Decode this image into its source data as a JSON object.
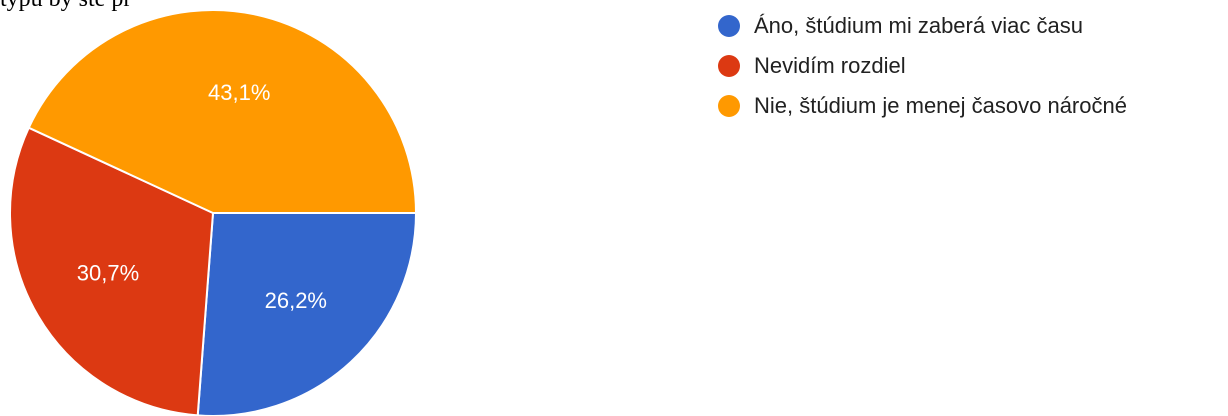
{
  "header": {
    "cut_text": "typu by ste pr"
  },
  "chart_data": {
    "type": "pie",
    "start_angle_deg": 90,
    "direction": "clockwise",
    "slices": [
      {
        "label": "Áno, štúdium mi zaberá viac času",
        "value": 26.2,
        "display": "26,2%",
        "color": "#3366CC"
      },
      {
        "label": "Nevidím rozdiel",
        "value": 30.7,
        "display": "30,7%",
        "color": "#DC3912"
      },
      {
        "label": "Nie, štúdium je menej časovo náročné",
        "value": 43.1,
        "display": "43,1%",
        "color": "#FF9900"
      }
    ],
    "legend_position": "right"
  }
}
